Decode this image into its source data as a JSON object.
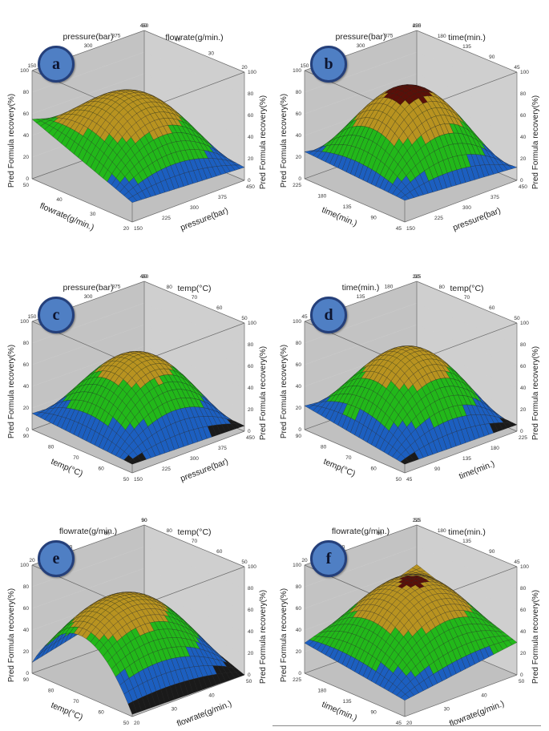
{
  "chart_data": [
    {
      "type": "surface3d",
      "panel": "a",
      "zlabel": "Pred Formula recovery(%)",
      "zlim": [
        0,
        100
      ],
      "zticks": [
        "0",
        "20",
        "40",
        "60",
        "80",
        "100"
      ],
      "x": {
        "label": "pressure(bar)",
        "ticks": [
          "150",
          "225",
          "300",
          "375",
          "450"
        ]
      },
      "y": {
        "label": "flowrate(g/min.)",
        "ticks": [
          "20",
          "30",
          "40",
          "50"
        ]
      },
      "peak": {
        "x": 300,
        "y": 35,
        "z": 78
      },
      "corners": {
        "x0y0": 18,
        "x1y0": 12,
        "x0y1": 55,
        "x1y1": 22
      }
    },
    {
      "type": "surface3d",
      "panel": "b",
      "zlabel": "Pred Formula recovery(%)",
      "zlim": [
        0,
        100
      ],
      "zticks": [
        "0",
        "20",
        "40",
        "60",
        "80",
        "100"
      ],
      "x": {
        "label": "pressure(bar)",
        "ticks": [
          "150",
          "225",
          "300",
          "375",
          "450"
        ]
      },
      "y": {
        "label": "time(min.)",
        "ticks": [
          "45",
          "90",
          "135",
          "180",
          "225"
        ]
      },
      "peak": {
        "x": 300,
        "y": 135,
        "z": 86
      },
      "corners": {
        "x0y0": 20,
        "x1y0": 12,
        "x0y1": 25,
        "x1y1": 5
      }
    },
    {
      "type": "surface3d",
      "panel": "c",
      "zlabel": "Pred Formula recovery(%)",
      "zlim": [
        0,
        100
      ],
      "zticks": [
        "0",
        "20",
        "40",
        "60",
        "80",
        "100"
      ],
      "x": {
        "label": "pressure(bar)",
        "ticks": [
          "150",
          "225",
          "300",
          "375",
          "450"
        ]
      },
      "y": {
        "label": "temp(°C)",
        "ticks": [
          "50",
          "60",
          "70",
          "80",
          "90"
        ]
      },
      "peak": {
        "x": 300,
        "y": 70,
        "z": 70
      },
      "corners": {
        "x0y0": 8,
        "x1y0": 5,
        "x0y1": 15,
        "x1y1": 8
      }
    },
    {
      "type": "surface3d",
      "panel": "d",
      "zlabel": "Pred Formula recovery(%)",
      "zlim": [
        0,
        100
      ],
      "zticks": [
        "0",
        "20",
        "40",
        "60",
        "80",
        "100"
      ],
      "x": {
        "label": "time(min.)",
        "ticks": [
          "45",
          "90",
          "135",
          "180",
          "225"
        ]
      },
      "y": {
        "label": "temp(°C)",
        "ticks": [
          "50",
          "60",
          "70",
          "80",
          "90"
        ]
      },
      "peak": {
        "x": 135,
        "y": 70,
        "z": 75
      },
      "corners": {
        "x0y0": 8,
        "x1y0": 6,
        "x0y1": 22,
        "x1y1": 10
      }
    },
    {
      "type": "surface3d",
      "panel": "e",
      "zlabel": "Pred Formula recovery(%)",
      "zlim": [
        0,
        100
      ],
      "zticks": [
        "0",
        "20",
        "40",
        "60",
        "80",
        "100"
      ],
      "x": {
        "label": "flowrate(g/min.)",
        "ticks": [
          "20",
          "30",
          "40",
          "50"
        ]
      },
      "y": {
        "label": "temp(°C)",
        "ticks": [
          "50",
          "60",
          "70",
          "80",
          "90"
        ]
      },
      "peak": {
        "x": 30,
        "y": 70,
        "z": 74
      },
      "corners": {
        "x0y0": 2,
        "x1y0": 0,
        "x0y1": 10,
        "x1y1": 35
      }
    },
    {
      "type": "surface3d",
      "panel": "f",
      "zlabel": "Pred Formula recovery(%)",
      "zlim": [
        0,
        100
      ],
      "zticks": [
        "0",
        "20",
        "40",
        "60",
        "80",
        "100"
      ],
      "x": {
        "label": "flowrate(g/min.)",
        "ticks": [
          "20",
          "30",
          "40",
          "50"
        ]
      },
      "y": {
        "label": "time(min.)",
        "ticks": [
          "45",
          "90",
          "135",
          "180",
          "225"
        ]
      },
      "peak": {
        "x": 35,
        "y": 135,
        "z": 80
      },
      "corners": {
        "x0y0": 15,
        "x1y0": 30,
        "x0y1": 28,
        "x1y1": 62
      }
    }
  ],
  "colors": {
    "band_high": "#5a0f08",
    "band_mid": "#b89320",
    "band_low": "#22b81a",
    "band_lower": "#1c5fc0",
    "band_min": "#1a1a1a",
    "mesh": "#1e1e1e",
    "badge_fill": "#4f7fc4"
  }
}
